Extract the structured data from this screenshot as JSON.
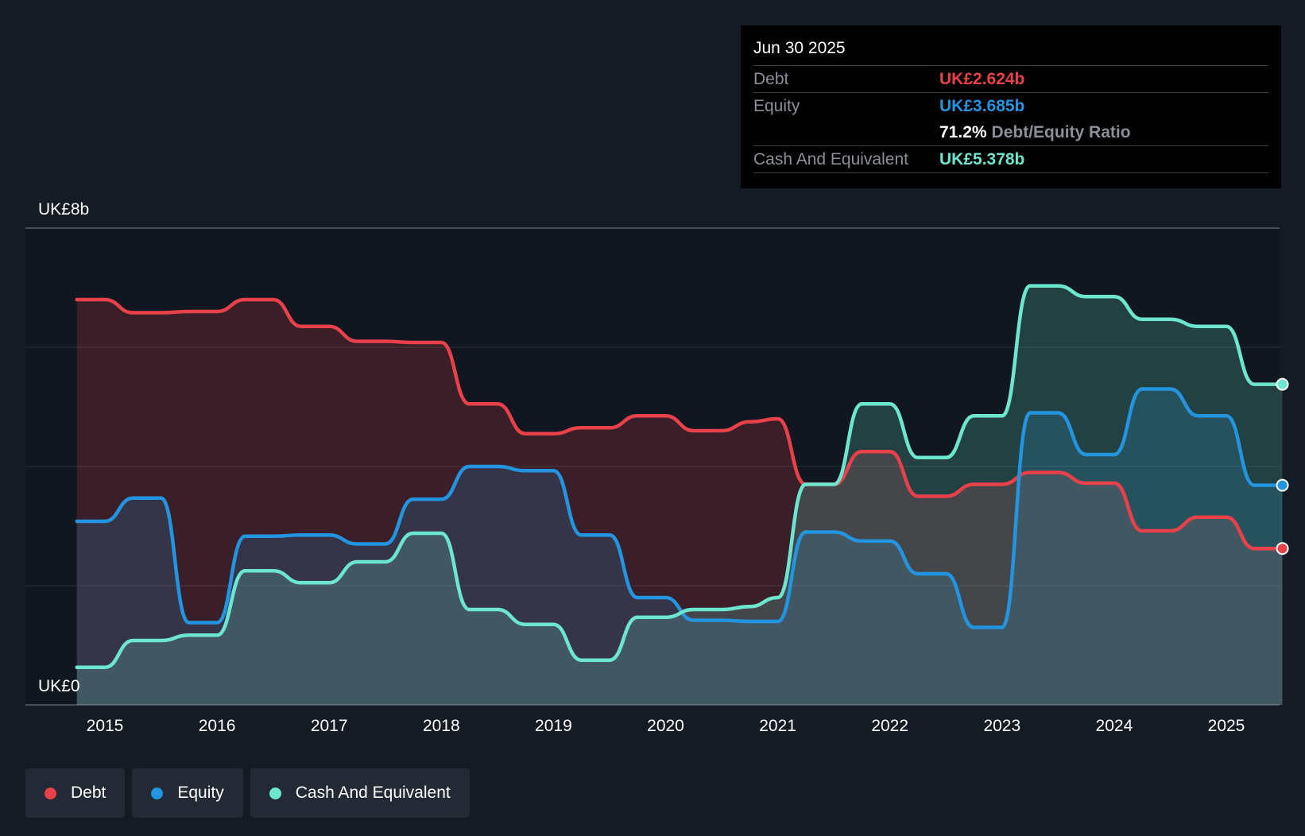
{
  "colors": {
    "debt": "#e8414a",
    "equity": "#2394df",
    "cash": "#6ce6cf",
    "background": "#151b24",
    "grid": "#2c333d"
  },
  "tooltip": {
    "date": "Jun 30 2025",
    "debt_label": "Debt",
    "debt_value": "UK£2.624b",
    "equity_label": "Equity",
    "equity_value": "UK£3.685b",
    "ratio_value": "71.2%",
    "ratio_label": "Debt/Equity Ratio",
    "cash_label": "Cash And Equivalent",
    "cash_value": "UK£5.378b"
  },
  "legend": {
    "debt": "Debt",
    "equity": "Equity",
    "cash": "Cash And Equivalent"
  },
  "chart_data": {
    "type": "area",
    "title": "",
    "ylabel_top": "UK£8b",
    "ylabel_bottom": "UK£0",
    "ylim": [
      0,
      8
    ],
    "xlim": [
      2014.5,
      2025.5
    ],
    "grid": true,
    "x_ticks": [
      "2015",
      "2016",
      "2017",
      "2018",
      "2019",
      "2020",
      "2021",
      "2022",
      "2023",
      "2024",
      "2025"
    ],
    "x_tick_values": [
      2015,
      2016,
      2017,
      2018,
      2019,
      2020,
      2021,
      2022,
      2023,
      2024,
      2025
    ],
    "series": [
      {
        "name": "Debt",
        "points": [
          [
            2014.75,
            6.8
          ],
          [
            2015.0,
            6.8
          ],
          [
            2015.25,
            6.58
          ],
          [
            2015.5,
            6.58
          ],
          [
            2015.75,
            6.6
          ],
          [
            2016.0,
            6.6
          ],
          [
            2016.25,
            6.8
          ],
          [
            2016.5,
            6.8
          ],
          [
            2016.75,
            6.35
          ],
          [
            2017.0,
            6.35
          ],
          [
            2017.25,
            6.1
          ],
          [
            2017.5,
            6.1
          ],
          [
            2017.75,
            6.08
          ],
          [
            2018.0,
            6.08
          ],
          [
            2018.25,
            5.05
          ],
          [
            2018.5,
            5.05
          ],
          [
            2018.75,
            4.55
          ],
          [
            2019.0,
            4.55
          ],
          [
            2019.25,
            4.65
          ],
          [
            2019.5,
            4.65
          ],
          [
            2019.75,
            4.85
          ],
          [
            2020.0,
            4.85
          ],
          [
            2020.25,
            4.6
          ],
          [
            2020.5,
            4.6
          ],
          [
            2020.75,
            4.75
          ],
          [
            2021.0,
            4.8
          ],
          [
            2021.25,
            3.7
          ],
          [
            2021.5,
            3.7
          ],
          [
            2021.75,
            4.25
          ],
          [
            2022.0,
            4.25
          ],
          [
            2022.25,
            3.5
          ],
          [
            2022.5,
            3.5
          ],
          [
            2022.75,
            3.7
          ],
          [
            2023.0,
            3.7
          ],
          [
            2023.25,
            3.9
          ],
          [
            2023.5,
            3.9
          ],
          [
            2023.75,
            3.72
          ],
          [
            2024.0,
            3.72
          ],
          [
            2024.25,
            2.92
          ],
          [
            2024.5,
            2.92
          ],
          [
            2024.75,
            3.15
          ],
          [
            2025.0,
            3.15
          ],
          [
            2025.25,
            2.624
          ],
          [
            2025.5,
            2.624
          ]
        ]
      },
      {
        "name": "Equity",
        "points": [
          [
            2014.75,
            3.08
          ],
          [
            2015.0,
            3.08
          ],
          [
            2015.25,
            3.47
          ],
          [
            2015.5,
            3.47
          ],
          [
            2015.75,
            1.38
          ],
          [
            2016.0,
            1.38
          ],
          [
            2016.25,
            2.83
          ],
          [
            2016.5,
            2.83
          ],
          [
            2016.75,
            2.85
          ],
          [
            2017.0,
            2.85
          ],
          [
            2017.25,
            2.7
          ],
          [
            2017.5,
            2.7
          ],
          [
            2017.75,
            3.45
          ],
          [
            2018.0,
            3.45
          ],
          [
            2018.25,
            4.0
          ],
          [
            2018.5,
            4.0
          ],
          [
            2018.75,
            3.93
          ],
          [
            2019.0,
            3.93
          ],
          [
            2019.25,
            2.85
          ],
          [
            2019.5,
            2.85
          ],
          [
            2019.75,
            1.8
          ],
          [
            2020.0,
            1.8
          ],
          [
            2020.25,
            1.42
          ],
          [
            2020.5,
            1.42
          ],
          [
            2020.75,
            1.4
          ],
          [
            2021.0,
            1.4
          ],
          [
            2021.25,
            2.9
          ],
          [
            2021.5,
            2.9
          ],
          [
            2021.75,
            2.75
          ],
          [
            2022.0,
            2.75
          ],
          [
            2022.25,
            2.2
          ],
          [
            2022.5,
            2.2
          ],
          [
            2022.75,
            1.3
          ],
          [
            2023.0,
            1.3
          ],
          [
            2023.25,
            4.9
          ],
          [
            2023.5,
            4.9
          ],
          [
            2023.75,
            4.2
          ],
          [
            2024.0,
            4.2
          ],
          [
            2024.25,
            5.3
          ],
          [
            2024.5,
            5.3
          ],
          [
            2024.75,
            4.85
          ],
          [
            2025.0,
            4.85
          ],
          [
            2025.25,
            3.685
          ],
          [
            2025.5,
            3.685
          ]
        ]
      },
      {
        "name": "Cash And Equivalent",
        "points": [
          [
            2014.75,
            0.63
          ],
          [
            2015.0,
            0.63
          ],
          [
            2015.25,
            1.08
          ],
          [
            2015.5,
            1.08
          ],
          [
            2015.75,
            1.17
          ],
          [
            2016.0,
            1.17
          ],
          [
            2016.25,
            2.25
          ],
          [
            2016.5,
            2.25
          ],
          [
            2016.75,
            2.05
          ],
          [
            2017.0,
            2.05
          ],
          [
            2017.25,
            2.4
          ],
          [
            2017.5,
            2.4
          ],
          [
            2017.75,
            2.88
          ],
          [
            2018.0,
            2.88
          ],
          [
            2018.25,
            1.6
          ],
          [
            2018.5,
            1.6
          ],
          [
            2018.75,
            1.35
          ],
          [
            2019.0,
            1.35
          ],
          [
            2019.25,
            0.75
          ],
          [
            2019.5,
            0.75
          ],
          [
            2019.75,
            1.47
          ],
          [
            2020.0,
            1.47
          ],
          [
            2020.25,
            1.6
          ],
          [
            2020.5,
            1.6
          ],
          [
            2020.75,
            1.65
          ],
          [
            2021.0,
            1.8
          ],
          [
            2021.25,
            3.7
          ],
          [
            2021.5,
            3.7
          ],
          [
            2021.75,
            5.05
          ],
          [
            2022.0,
            5.05
          ],
          [
            2022.25,
            4.15
          ],
          [
            2022.5,
            4.15
          ],
          [
            2022.75,
            4.85
          ],
          [
            2023.0,
            4.85
          ],
          [
            2023.25,
            7.03
          ],
          [
            2023.5,
            7.03
          ],
          [
            2023.75,
            6.85
          ],
          [
            2024.0,
            6.85
          ],
          [
            2024.25,
            6.47
          ],
          [
            2024.5,
            6.47
          ],
          [
            2024.75,
            6.35
          ],
          [
            2025.0,
            6.35
          ],
          [
            2025.25,
            5.378
          ],
          [
            2025.5,
            5.378
          ]
        ]
      }
    ]
  }
}
